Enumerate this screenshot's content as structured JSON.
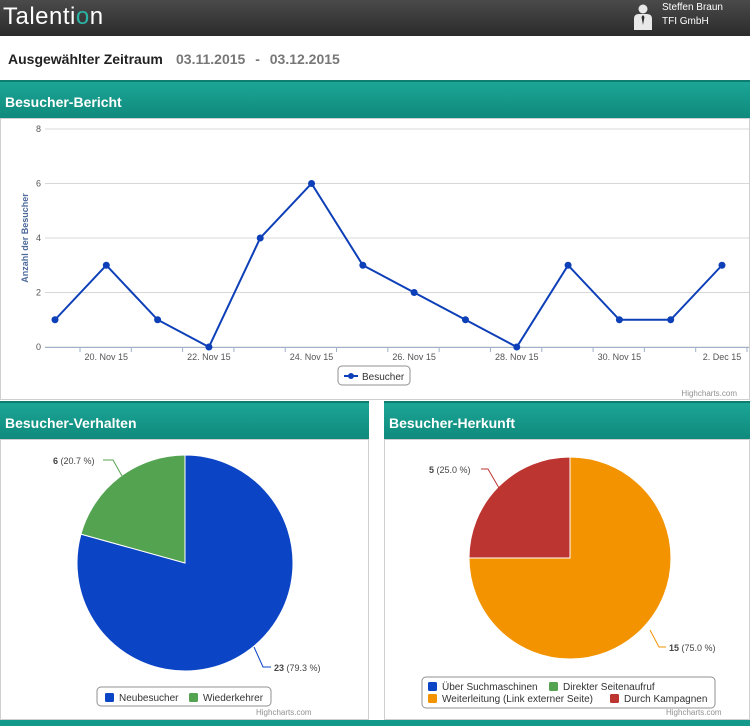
{
  "header": {
    "logo_text_a": "Talenti",
    "logo_text_b": "o",
    "logo_text_c": "n",
    "user_name": "Steffen Braun",
    "user_company": "TFI GmbH"
  },
  "period": {
    "label": "Ausgewählter Zeitraum",
    "start": "03.11.2015",
    "separator": "-",
    "end": "03.12.2015"
  },
  "panels": {
    "visitors_report": "Besucher-Bericht",
    "visitor_behavior": "Besucher-Verhalten",
    "visitor_origin": "Besucher-Herkunft"
  },
  "credits": "Highcharts.com",
  "colors": {
    "teal": "#14a08f",
    "line": "#0d3fb8",
    "blue": "#0b44c4",
    "green": "#54a351",
    "orange": "#f39300",
    "red": "#bc3530"
  },
  "chart_data": [
    {
      "type": "line",
      "title": "",
      "ylabel": "Anzahl der Besucher",
      "ylim": [
        0,
        8
      ],
      "y_ticks": [
        0,
        2,
        4,
        6,
        8
      ],
      "x_tick_labels": [
        "20. Nov 15",
        "22. Nov 15",
        "24. Nov 15",
        "26. Nov 15",
        "28. Nov 15",
        "30. Nov 15",
        "2. Dec 15"
      ],
      "x": [
        "19. Nov 15",
        "20. Nov 15",
        "21. Nov 15",
        "22. Nov 15",
        "23. Nov 15",
        "24. Nov 15",
        "25. Nov 15",
        "26. Nov 15",
        "27. Nov 15",
        "28. Nov 15",
        "29. Nov 15",
        "30. Nov 15",
        "1. Dec 15",
        "2. Dec 15"
      ],
      "series": [
        {
          "name": "Besucher",
          "values": [
            1,
            3,
            1,
            0,
            4,
            6,
            3,
            2,
            1,
            0,
            3,
            1,
            1,
            3
          ]
        }
      ],
      "legend": "bottom-center",
      "grid": true
    },
    {
      "type": "pie",
      "title": "",
      "slices": [
        {
          "name": "Neubesucher",
          "value": 23,
          "label": "23 (79.3 %)",
          "color": "#0b44c4"
        },
        {
          "name": "Wiederkehrer",
          "value": 6,
          "label": "6 (20.7 %)",
          "color": "#54a351"
        }
      ],
      "legend": "bottom-center"
    },
    {
      "type": "pie",
      "title": "",
      "slices": [
        {
          "name": "Über Suchmaschinen",
          "value": 0,
          "label": "",
          "color": "#0b44c4"
        },
        {
          "name": "Direkter Seitenaufruf",
          "value": 0,
          "label": "",
          "color": "#54a351"
        },
        {
          "name": "Weiterleitung (Link externer Seite)",
          "value": 15,
          "label": "15 (75.0 %)",
          "color": "#f39300"
        },
        {
          "name": "Durch Kampagnen",
          "value": 5,
          "label": "5 (25.0 %)",
          "color": "#bc3530"
        }
      ],
      "legend": "bottom-center"
    }
  ]
}
